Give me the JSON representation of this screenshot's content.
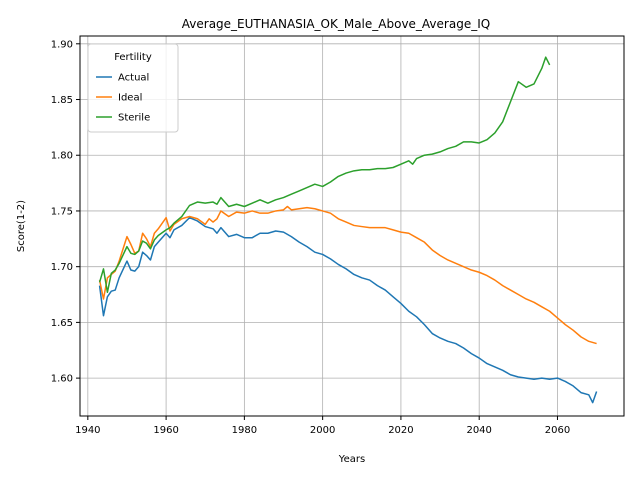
{
  "chart_data": {
    "type": "line",
    "title": "Average_EUTHANASIA_OK_Male_Above_Average_IQ",
    "xlabel": "Years",
    "ylabel": "Score(1-2)",
    "xlim": [
      1938,
      2077
    ],
    "ylim": [
      1.566,
      1.907
    ],
    "xticks": [
      1940,
      1960,
      1980,
      2000,
      2020,
      2040,
      2060
    ],
    "yticks": [
      1.6,
      1.65,
      1.7,
      1.75,
      1.8,
      1.85,
      1.9
    ],
    "xtick_labels": [
      "1940",
      "1960",
      "1980",
      "2000",
      "2020",
      "2040",
      "2060"
    ],
    "ytick_labels": [
      "1.60",
      "1.65",
      "1.70",
      "1.75",
      "1.80",
      "1.85",
      "1.90"
    ],
    "grid": true,
    "legend": {
      "title": "Fertility",
      "position": "upper-left"
    },
    "series": [
      {
        "name": "Actual",
        "color": "#1f77b4",
        "points": [
          [
            1943,
            1.683
          ],
          [
            1944,
            1.656
          ],
          [
            1945,
            1.673
          ],
          [
            1946,
            1.678
          ],
          [
            1947,
            1.679
          ],
          [
            1948,
            1.69
          ],
          [
            1950,
            1.705
          ],
          [
            1951,
            1.697
          ],
          [
            1952,
            1.696
          ],
          [
            1953,
            1.7
          ],
          [
            1954,
            1.713
          ],
          [
            1955,
            1.71
          ],
          [
            1956,
            1.706
          ],
          [
            1957,
            1.718
          ],
          [
            1958,
            1.722
          ],
          [
            1960,
            1.73
          ],
          [
            1961,
            1.726
          ],
          [
            1962,
            1.733
          ],
          [
            1964,
            1.737
          ],
          [
            1966,
            1.744
          ],
          [
            1968,
            1.741
          ],
          [
            1970,
            1.736
          ],
          [
            1972,
            1.734
          ],
          [
            1973,
            1.73
          ],
          [
            1974,
            1.735
          ],
          [
            1976,
            1.727
          ],
          [
            1978,
            1.729
          ],
          [
            1980,
            1.726
          ],
          [
            1982,
            1.726
          ],
          [
            1984,
            1.73
          ],
          [
            1986,
            1.73
          ],
          [
            1988,
            1.732
          ],
          [
            1990,
            1.731
          ],
          [
            1992,
            1.727
          ],
          [
            1994,
            1.722
          ],
          [
            1996,
            1.718
          ],
          [
            1998,
            1.713
          ],
          [
            2000,
            1.711
          ],
          [
            2002,
            1.707
          ],
          [
            2004,
            1.702
          ],
          [
            2006,
            1.698
          ],
          [
            2008,
            1.693
          ],
          [
            2010,
            1.69
          ],
          [
            2012,
            1.688
          ],
          [
            2014,
            1.683
          ],
          [
            2016,
            1.679
          ],
          [
            2018,
            1.673
          ],
          [
            2020,
            1.667
          ],
          [
            2022,
            1.66
          ],
          [
            2024,
            1.655
          ],
          [
            2026,
            1.648
          ],
          [
            2028,
            1.64
          ],
          [
            2030,
            1.636
          ],
          [
            2032,
            1.633
          ],
          [
            2034,
            1.631
          ],
          [
            2036,
            1.627
          ],
          [
            2038,
            1.622
          ],
          [
            2040,
            1.618
          ],
          [
            2042,
            1.613
          ],
          [
            2044,
            1.61
          ],
          [
            2046,
            1.607
          ],
          [
            2048,
            1.603
          ],
          [
            2050,
            1.601
          ],
          [
            2052,
            1.6
          ],
          [
            2054,
            1.599
          ],
          [
            2056,
            1.6
          ],
          [
            2058,
            1.599
          ],
          [
            2060,
            1.6
          ],
          [
            2062,
            1.597
          ],
          [
            2064,
            1.593
          ],
          [
            2066,
            1.587
          ],
          [
            2068,
            1.585
          ],
          [
            2069,
            1.578
          ],
          [
            2070,
            1.588
          ]
        ]
      },
      {
        "name": "Ideal",
        "color": "#ff7f0e",
        "points": [
          [
            1943,
            1.688
          ],
          [
            1944,
            1.671
          ],
          [
            1945,
            1.69
          ],
          [
            1946,
            1.693
          ],
          [
            1947,
            1.696
          ],
          [
            1948,
            1.705
          ],
          [
            1950,
            1.727
          ],
          [
            1951,
            1.72
          ],
          [
            1952,
            1.712
          ],
          [
            1953,
            1.714
          ],
          [
            1954,
            1.73
          ],
          [
            1955,
            1.725
          ],
          [
            1956,
            1.718
          ],
          [
            1957,
            1.73
          ],
          [
            1958,
            1.734
          ],
          [
            1960,
            1.744
          ],
          [
            1961,
            1.732
          ],
          [
            1962,
            1.738
          ],
          [
            1964,
            1.743
          ],
          [
            1966,
            1.745
          ],
          [
            1968,
            1.743
          ],
          [
            1970,
            1.738
          ],
          [
            1971,
            1.743
          ],
          [
            1972,
            1.74
          ],
          [
            1973,
            1.743
          ],
          [
            1974,
            1.75
          ],
          [
            1976,
            1.745
          ],
          [
            1978,
            1.749
          ],
          [
            1980,
            1.748
          ],
          [
            1982,
            1.75
          ],
          [
            1984,
            1.748
          ],
          [
            1986,
            1.748
          ],
          [
            1988,
            1.75
          ],
          [
            1990,
            1.751
          ],
          [
            1991,
            1.754
          ],
          [
            1992,
            1.751
          ],
          [
            1994,
            1.752
          ],
          [
            1996,
            1.753
          ],
          [
            1998,
            1.752
          ],
          [
            2000,
            1.75
          ],
          [
            2002,
            1.748
          ],
          [
            2004,
            1.743
          ],
          [
            2006,
            1.74
          ],
          [
            2008,
            1.737
          ],
          [
            2010,
            1.736
          ],
          [
            2012,
            1.735
          ],
          [
            2014,
            1.735
          ],
          [
            2016,
            1.735
          ],
          [
            2018,
            1.733
          ],
          [
            2020,
            1.731
          ],
          [
            2022,
            1.73
          ],
          [
            2024,
            1.726
          ],
          [
            2026,
            1.722
          ],
          [
            2028,
            1.715
          ],
          [
            2030,
            1.71
          ],
          [
            2032,
            1.706
          ],
          [
            2034,
            1.703
          ],
          [
            2036,
            1.7
          ],
          [
            2038,
            1.697
          ],
          [
            2040,
            1.695
          ],
          [
            2042,
            1.692
          ],
          [
            2044,
            1.688
          ],
          [
            2046,
            1.683
          ],
          [
            2048,
            1.679
          ],
          [
            2050,
            1.675
          ],
          [
            2052,
            1.671
          ],
          [
            2054,
            1.668
          ],
          [
            2056,
            1.664
          ],
          [
            2058,
            1.66
          ],
          [
            2060,
            1.654
          ],
          [
            2062,
            1.648
          ],
          [
            2064,
            1.643
          ],
          [
            2066,
            1.637
          ],
          [
            2068,
            1.633
          ],
          [
            2070,
            1.631
          ]
        ]
      },
      {
        "name": "Sterile",
        "color": "#2ca02c",
        "points": [
          [
            1943,
            1.686
          ],
          [
            1944,
            1.698
          ],
          [
            1945,
            1.677
          ],
          [
            1946,
            1.694
          ],
          [
            1947,
            1.697
          ],
          [
            1948,
            1.703
          ],
          [
            1950,
            1.718
          ],
          [
            1951,
            1.712
          ],
          [
            1952,
            1.711
          ],
          [
            1953,
            1.714
          ],
          [
            1954,
            1.723
          ],
          [
            1955,
            1.721
          ],
          [
            1956,
            1.716
          ],
          [
            1957,
            1.724
          ],
          [
            1958,
            1.728
          ],
          [
            1960,
            1.733
          ],
          [
            1961,
            1.735
          ],
          [
            1962,
            1.739
          ],
          [
            1964,
            1.745
          ],
          [
            1966,
            1.755
          ],
          [
            1968,
            1.758
          ],
          [
            1970,
            1.757
          ],
          [
            1972,
            1.758
          ],
          [
            1973,
            1.756
          ],
          [
            1974,
            1.762
          ],
          [
            1976,
            1.754
          ],
          [
            1978,
            1.756
          ],
          [
            1980,
            1.754
          ],
          [
            1982,
            1.757
          ],
          [
            1984,
            1.76
          ],
          [
            1986,
            1.757
          ],
          [
            1988,
            1.76
          ],
          [
            1990,
            1.762
          ],
          [
            1992,
            1.765
          ],
          [
            1994,
            1.768
          ],
          [
            1996,
            1.771
          ],
          [
            1998,
            1.774
          ],
          [
            2000,
            1.772
          ],
          [
            2002,
            1.776
          ],
          [
            2004,
            1.781
          ],
          [
            2006,
            1.784
          ],
          [
            2008,
            1.786
          ],
          [
            2010,
            1.787
          ],
          [
            2012,
            1.787
          ],
          [
            2014,
            1.788
          ],
          [
            2016,
            1.788
          ],
          [
            2018,
            1.789
          ],
          [
            2020,
            1.792
          ],
          [
            2022,
            1.795
          ],
          [
            2023,
            1.792
          ],
          [
            2024,
            1.797
          ],
          [
            2026,
            1.8
          ],
          [
            2028,
            1.801
          ],
          [
            2030,
            1.803
          ],
          [
            2032,
            1.806
          ],
          [
            2034,
            1.808
          ],
          [
            2036,
            1.812
          ],
          [
            2038,
            1.812
          ],
          [
            2040,
            1.811
          ],
          [
            2042,
            1.814
          ],
          [
            2044,
            1.82
          ],
          [
            2046,
            1.83
          ],
          [
            2048,
            1.848
          ],
          [
            2050,
            1.866
          ],
          [
            2052,
            1.861
          ],
          [
            2054,
            1.864
          ],
          [
            2056,
            1.878
          ],
          [
            2057,
            1.888
          ],
          [
            2058,
            1.881
          ]
        ]
      }
    ]
  }
}
